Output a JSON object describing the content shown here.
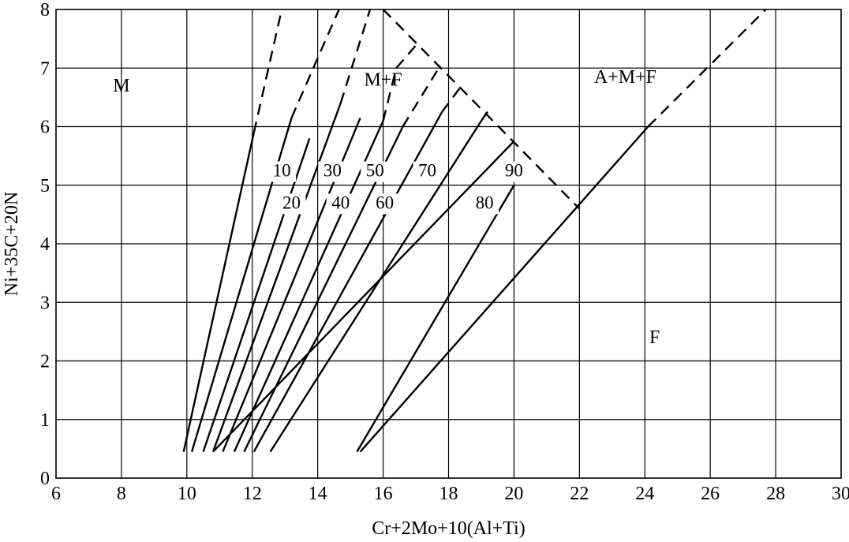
{
  "chart_data": {
    "type": "line",
    "title": "",
    "xlabel": "Cr+2Mo+10(Al+Ti)",
    "ylabel": "Ni+35C+20N",
    "xlim": [
      6,
      30
    ],
    "ylim": [
      0,
      8
    ],
    "x_ticks": [
      "6",
      "8",
      "10",
      "12",
      "14",
      "16",
      "18",
      "20",
      "22",
      "24",
      "26",
      "28",
      "30"
    ],
    "y_ticks": [
      "0",
      "1",
      "2",
      "3",
      "4",
      "5",
      "6",
      "7",
      "8"
    ],
    "grid": true,
    "regions": [
      {
        "label": "M",
        "x": 8.0,
        "y": 6.6
      },
      {
        "label": "M+F",
        "x": 16.0,
        "y": 6.7
      },
      {
        "label": "A+M+F",
        "x": 23.4,
        "y": 6.75
      },
      {
        "label": "F",
        "x": 24.3,
        "y": 2.3
      }
    ],
    "series": [
      {
        "name": "",
        "style": "solid",
        "points": [
          [
            9.9,
            0.45
          ],
          [
            12.05,
            5.9
          ]
        ]
      },
      {
        "name": "",
        "style": "dashed",
        "points": [
          [
            12.05,
            5.9
          ],
          [
            12.9,
            8.0
          ]
        ]
      },
      {
        "name": "10",
        "style": "solid",
        "points": [
          [
            10.15,
            0.45
          ],
          [
            13.2,
            6.15
          ]
        ]
      },
      {
        "name": "",
        "style": "dashed",
        "points": [
          [
            13.2,
            6.15
          ],
          [
            14.65,
            8.0
          ]
        ]
      },
      {
        "name": "20",
        "style": "solid",
        "points": [
          [
            10.5,
            0.45
          ],
          [
            13.75,
            5.8
          ]
        ]
      },
      {
        "name": "30",
        "style": "solid",
        "points": [
          [
            10.8,
            0.45
          ],
          [
            14.7,
            6.4
          ]
        ]
      },
      {
        "name": "",
        "style": "dashed",
        "points": [
          [
            14.7,
            6.4
          ],
          [
            15.6,
            8.0
          ]
        ]
      },
      {
        "name": "40",
        "style": "solid",
        "points": [
          [
            11.1,
            0.45
          ],
          [
            15.3,
            6.15
          ]
        ]
      },
      {
        "name": "50",
        "style": "solid",
        "points": [
          [
            11.45,
            0.45
          ],
          [
            16.0,
            6.1
          ]
        ]
      },
      {
        "name": "",
        "style": "dashed",
        "points": [
          [
            16.0,
            6.1
          ],
          [
            16.4,
            7.0
          ],
          [
            17.1,
            7.45
          ]
        ]
      },
      {
        "name": "60",
        "style": "solid",
        "points": [
          [
            11.75,
            0.45
          ],
          [
            16.6,
            6.0
          ]
        ]
      },
      {
        "name": "",
        "style": "dashed",
        "points": [
          [
            16.6,
            6.0
          ],
          [
            17.7,
            7.0
          ]
        ]
      },
      {
        "name": "70",
        "style": "solid",
        "points": [
          [
            12.05,
            0.45
          ],
          [
            17.8,
            6.25
          ]
        ]
      },
      {
        "name": "",
        "style": "dashed",
        "points": [
          [
            17.8,
            6.25
          ],
          [
            18.4,
            6.7
          ]
        ]
      },
      {
        "name": "80",
        "style": "solid",
        "points": [
          [
            12.55,
            0.45
          ],
          [
            19.0,
            6.1
          ]
        ]
      },
      {
        "name": "",
        "style": "dashed",
        "points": [
          [
            19.0,
            6.1
          ],
          [
            19.25,
            6.3
          ]
        ]
      },
      {
        "name": "90",
        "style": "solid",
        "points": [
          [
            15.2,
            0.45
          ],
          [
            20.0,
            5.0
          ]
        ]
      },
      {
        "name": "",
        "style": "solid",
        "points": [
          [
            10.8,
            0.45
          ],
          [
            20.0,
            5.75
          ]
        ]
      },
      {
        "name": "",
        "style": "solid",
        "points": [
          [
            15.3,
            0.45
          ],
          [
            24.1,
            6.0
          ]
        ]
      },
      {
        "name": "",
        "style": "dashed",
        "points": [
          [
            24.1,
            6.0
          ],
          [
            27.7,
            8.0
          ]
        ]
      },
      {
        "name": "",
        "style": "dashed",
        "points": [
          [
            16.0,
            8.0
          ],
          [
            22.0,
            4.6
          ]
        ]
      }
    ]
  }
}
